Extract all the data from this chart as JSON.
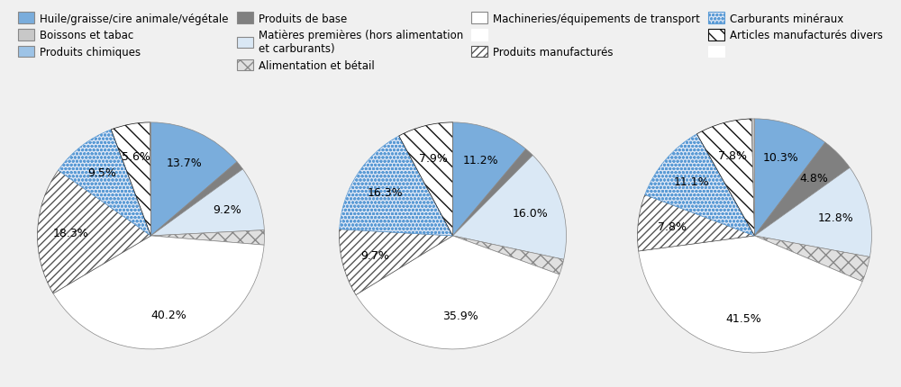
{
  "pie1_values": [
    13.7,
    1.3,
    9.2,
    2.1,
    40.2,
    18.3,
    9.5,
    5.6,
    0.1
  ],
  "pie2_values": [
    11.2,
    1.3,
    16.0,
    2.2,
    35.9,
    9.7,
    16.3,
    7.9,
    0.0
  ],
  "pie3_values": [
    10.3,
    4.8,
    12.8,
    3.5,
    41.5,
    7.8,
    11.1,
    7.8,
    0.4
  ],
  "pie1_pct": [
    "13.7%",
    "",
    "9.2%",
    "",
    "40.2%",
    "18.3%",
    "9.5%",
    "5.6%",
    ""
  ],
  "pie2_pct": [
    "11.2%",
    "",
    "16.0%",
    "",
    "35.9%",
    "9.7%",
    "16.3%",
    "7.9%",
    ""
  ],
  "pie3_pct": [
    "10.3%",
    "4.8%",
    "12.8%",
    "",
    "41.5%",
    "7.8%",
    "11.1%",
    "7.8%",
    ""
  ],
  "bg_color": "#f0f0f0",
  "pie_bg": "#ffffff",
  "label_fs": 9.0,
  "legend_fs": 8.5,
  "segment_styles": [
    {
      "fc": "#7aaddc",
      "hatch": null,
      "ec": "#888888",
      "lw": 0.5
    },
    {
      "fc": "#808080",
      "hatch": null,
      "ec": "#888888",
      "lw": 0.5
    },
    {
      "fc": "#dae8f5",
      "hatch": null,
      "ec": "#888888",
      "lw": 0.5
    },
    {
      "fc": "#e0e0e0",
      "hatch": "xx",
      "ec": "#888888",
      "lw": 0.5
    },
    {
      "fc": "#ffffff",
      "hatch": null,
      "ec": "#888888",
      "lw": 0.5
    },
    {
      "fc": "#ffffff",
      "hatch": "////",
      "ec": "#555555",
      "lw": 0.5
    },
    {
      "fc": "#dce6f5",
      "hatch": "oooo",
      "ec": "#5b9bd5",
      "lw": 0.5
    },
    {
      "fc": "#ffffff",
      "hatch": "\\\\",
      "ec": "#111111",
      "lw": 0.5
    },
    {
      "fc": "#c0c0c0",
      "hatch": null,
      "ec": "#888888",
      "lw": 0.5
    }
  ],
  "legend_entries": [
    {
      "label": "Huile/graisse/cire animale/végétale",
      "fc": "#7aaddc",
      "hatch": null,
      "ec": "#888888"
    },
    {
      "label": "Boissons et tabac",
      "fc": "#c8c8c8",
      "hatch": null,
      "ec": "#888888"
    },
    {
      "label": "Produits chimiques",
      "fc": "#9dc3e6",
      "hatch": null,
      "ec": "#888888"
    },
    {
      "label": "Produits de base",
      "fc": "#808080",
      "hatch": null,
      "ec": "#888888"
    },
    {
      "label": "Matières premières (hors alimentation\net carburants)",
      "fc": "#dae8f5",
      "hatch": null,
      "ec": "#888888"
    },
    {
      "label": "Alimentation et bétail",
      "fc": "#e0e0e0",
      "hatch": "xx",
      "ec": "#888888"
    },
    {
      "label": "Machineries/équipements de transport",
      "fc": "#ffffff",
      "hatch": null,
      "ec": "#888888"
    },
    {
      "label": "",
      "fc": "#ffffff",
      "hatch": null,
      "ec": "#ffffff"
    },
    {
      "label": "Produits manufacturés",
      "fc": "#ffffff",
      "hatch": "////",
      "ec": "#555555"
    },
    {
      "label": "Carburants minéraux",
      "fc": "#dce6f5",
      "hatch": "oooo",
      "ec": "#5b9bd5"
    },
    {
      "label": "Articles manufacturés divers",
      "fc": "#ffffff",
      "hatch": "\\\\",
      "ec": "#111111"
    },
    {
      "label": "",
      "fc": "#ffffff",
      "hatch": null,
      "ec": "#ffffff"
    }
  ]
}
